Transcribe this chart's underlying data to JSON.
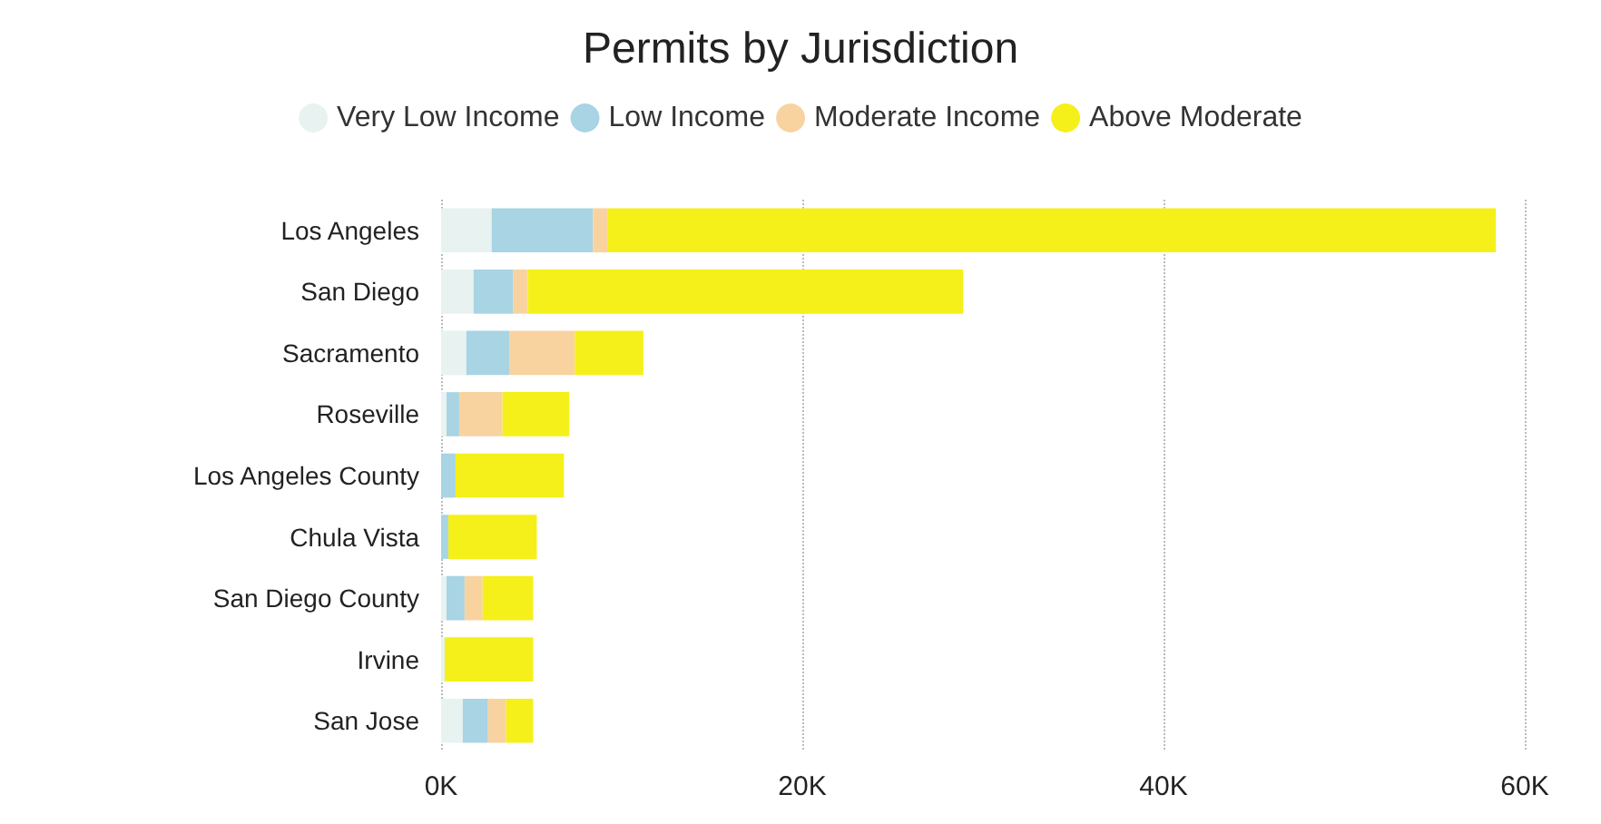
{
  "chart_data": {
    "type": "bar",
    "orientation": "horizontal",
    "stacked": true,
    "title": "Permits by Jurisdiction",
    "categories": [
      "Los Angeles",
      "San Diego",
      "Sacramento",
      "Roseville",
      "Los Angeles County",
      "Chula Vista",
      "San Diego County",
      "Irvine",
      "San Jose"
    ],
    "series": [
      {
        "name": "Very Low Income",
        "color": "#e8f3f1",
        "values": [
          2800,
          1800,
          1400,
          300,
          null,
          null,
          300,
          200,
          1200
        ]
      },
      {
        "name": "Low Income",
        "color": "#a8d4e4",
        "values": [
          5600,
          2200,
          2400,
          700,
          800,
          400,
          1000,
          null,
          1400
        ]
      },
      {
        "name": "Moderate Income",
        "color": "#f8d3a0",
        "values": [
          800,
          800,
          3600,
          2400,
          0,
          0,
          1000,
          0,
          1000
        ]
      },
      {
        "name": "Above Moderate",
        "color": "#f5f019",
        "values": [
          49200,
          24100,
          3800,
          3700,
          6000,
          4900,
          2800,
          4900,
          1500
        ]
      }
    ],
    "xlim": [
      0,
      60000
    ],
    "xticks": [
      {
        "value": 0,
        "label": "0K"
      },
      {
        "value": 20000,
        "label": "20K"
      },
      {
        "value": 40000,
        "label": "40K"
      },
      {
        "value": 60000,
        "label": "60K"
      }
    ],
    "grid": "x",
    "legend": "top"
  }
}
